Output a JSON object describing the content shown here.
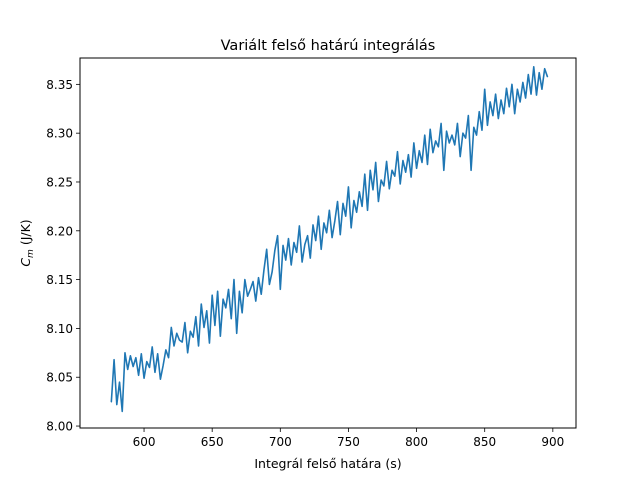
{
  "chart_data": {
    "type": "line",
    "title": "Variált felső határú integrálás",
    "xlabel": "Integrál felső határa (s)",
    "ylabel_main": "C",
    "ylabel_sub": "m",
    "ylabel_unit": " (J/K)",
    "xlim": [
      553,
      917
    ],
    "ylim": [
      7.998,
      8.377
    ],
    "xticks": [
      600,
      650,
      700,
      750,
      800,
      850,
      900
    ],
    "yticks": [
      8.0,
      8.05,
      8.1,
      8.15,
      8.2,
      8.25,
      8.3,
      8.35
    ],
    "xtick_labels": [
      "600",
      "650",
      "700",
      "750",
      "800",
      "850",
      "900"
    ],
    "ytick_labels": [
      "8.00",
      "8.05",
      "8.10",
      "8.15",
      "8.20",
      "8.25",
      "8.30",
      "8.35"
    ],
    "grid": false,
    "series": [
      {
        "color": "#1f77b4",
        "x": [
          576,
          578,
          580,
          582,
          584,
          586,
          588,
          590,
          592,
          594,
          596,
          598,
          600,
          602,
          604,
          606,
          608,
          610,
          612,
          614,
          616,
          618,
          620,
          622,
          624,
          626,
          628,
          630,
          632,
          634,
          636,
          638,
          640,
          642,
          644,
          646,
          648,
          650,
          652,
          654,
          656,
          658,
          660,
          662,
          664,
          666,
          668,
          670,
          672,
          674,
          676,
          678,
          680,
          682,
          684,
          686,
          688,
          690,
          692,
          694,
          696,
          698,
          700,
          702,
          704,
          706,
          708,
          710,
          712,
          714,
          716,
          718,
          720,
          722,
          724,
          726,
          728,
          730,
          732,
          734,
          736,
          738,
          740,
          742,
          744,
          746,
          748,
          750,
          752,
          754,
          756,
          758,
          760,
          762,
          764,
          766,
          768,
          770,
          772,
          774,
          776,
          778,
          780,
          782,
          784,
          786,
          788,
          790,
          792,
          794,
          796,
          798,
          800,
          802,
          804,
          806,
          808,
          810,
          812,
          814,
          816,
          818,
          820,
          822,
          824,
          826,
          828,
          830,
          832,
          834,
          836,
          838,
          840,
          842,
          844,
          846,
          848,
          850,
          852,
          854,
          856,
          858,
          860,
          862,
          864,
          866,
          868,
          870,
          872,
          874,
          876,
          878,
          880,
          882,
          884,
          886,
          888,
          890,
          892,
          894,
          896
        ],
        "y": [
          8.025,
          8.068,
          8.022,
          8.045,
          8.015,
          8.075,
          8.058,
          8.072,
          8.061,
          8.07,
          8.052,
          8.074,
          8.049,
          8.066,
          8.06,
          8.081,
          8.055,
          8.074,
          8.048,
          8.062,
          8.078,
          8.07,
          8.101,
          8.082,
          8.095,
          8.088,
          8.086,
          8.106,
          8.075,
          8.097,
          8.091,
          8.112,
          8.082,
          8.125,
          8.101,
          8.118,
          8.085,
          8.134,
          8.103,
          8.138,
          8.092,
          8.13,
          8.121,
          8.14,
          8.11,
          8.15,
          8.095,
          8.138,
          8.116,
          8.15,
          8.133,
          8.14,
          8.148,
          8.128,
          8.152,
          8.135,
          8.16,
          8.181,
          8.145,
          8.158,
          8.18,
          8.195,
          8.14,
          8.185,
          8.17,
          8.192,
          8.165,
          8.188,
          8.178,
          8.205,
          8.168,
          8.186,
          8.195,
          8.172,
          8.206,
          8.19,
          8.215,
          8.181,
          8.208,
          8.198,
          8.221,
          8.193,
          8.21,
          8.23,
          8.196,
          8.228,
          8.215,
          8.245,
          8.203,
          8.231,
          8.219,
          8.24,
          8.225,
          8.258,
          8.221,
          8.262,
          8.242,
          8.27,
          8.23,
          8.252,
          8.246,
          8.271,
          8.243,
          8.262,
          8.256,
          8.281,
          8.248,
          8.272,
          8.26,
          8.278,
          8.255,
          8.29,
          8.264,
          8.282,
          8.27,
          8.298,
          8.268,
          8.304,
          8.28,
          8.292,
          8.286,
          8.31,
          8.262,
          8.302,
          8.29,
          8.298,
          8.288,
          8.31,
          8.276,
          8.3,
          8.295,
          8.318,
          8.262,
          8.306,
          8.298,
          8.322,
          8.303,
          8.345,
          8.308,
          8.332,
          8.318,
          8.34,
          8.315,
          8.334,
          8.32,
          8.346,
          8.327,
          8.35,
          8.32,
          8.345,
          8.332,
          8.352,
          8.336,
          8.36,
          8.34,
          8.368,
          8.339,
          8.362,
          8.345,
          8.366,
          8.358
        ]
      }
    ]
  }
}
